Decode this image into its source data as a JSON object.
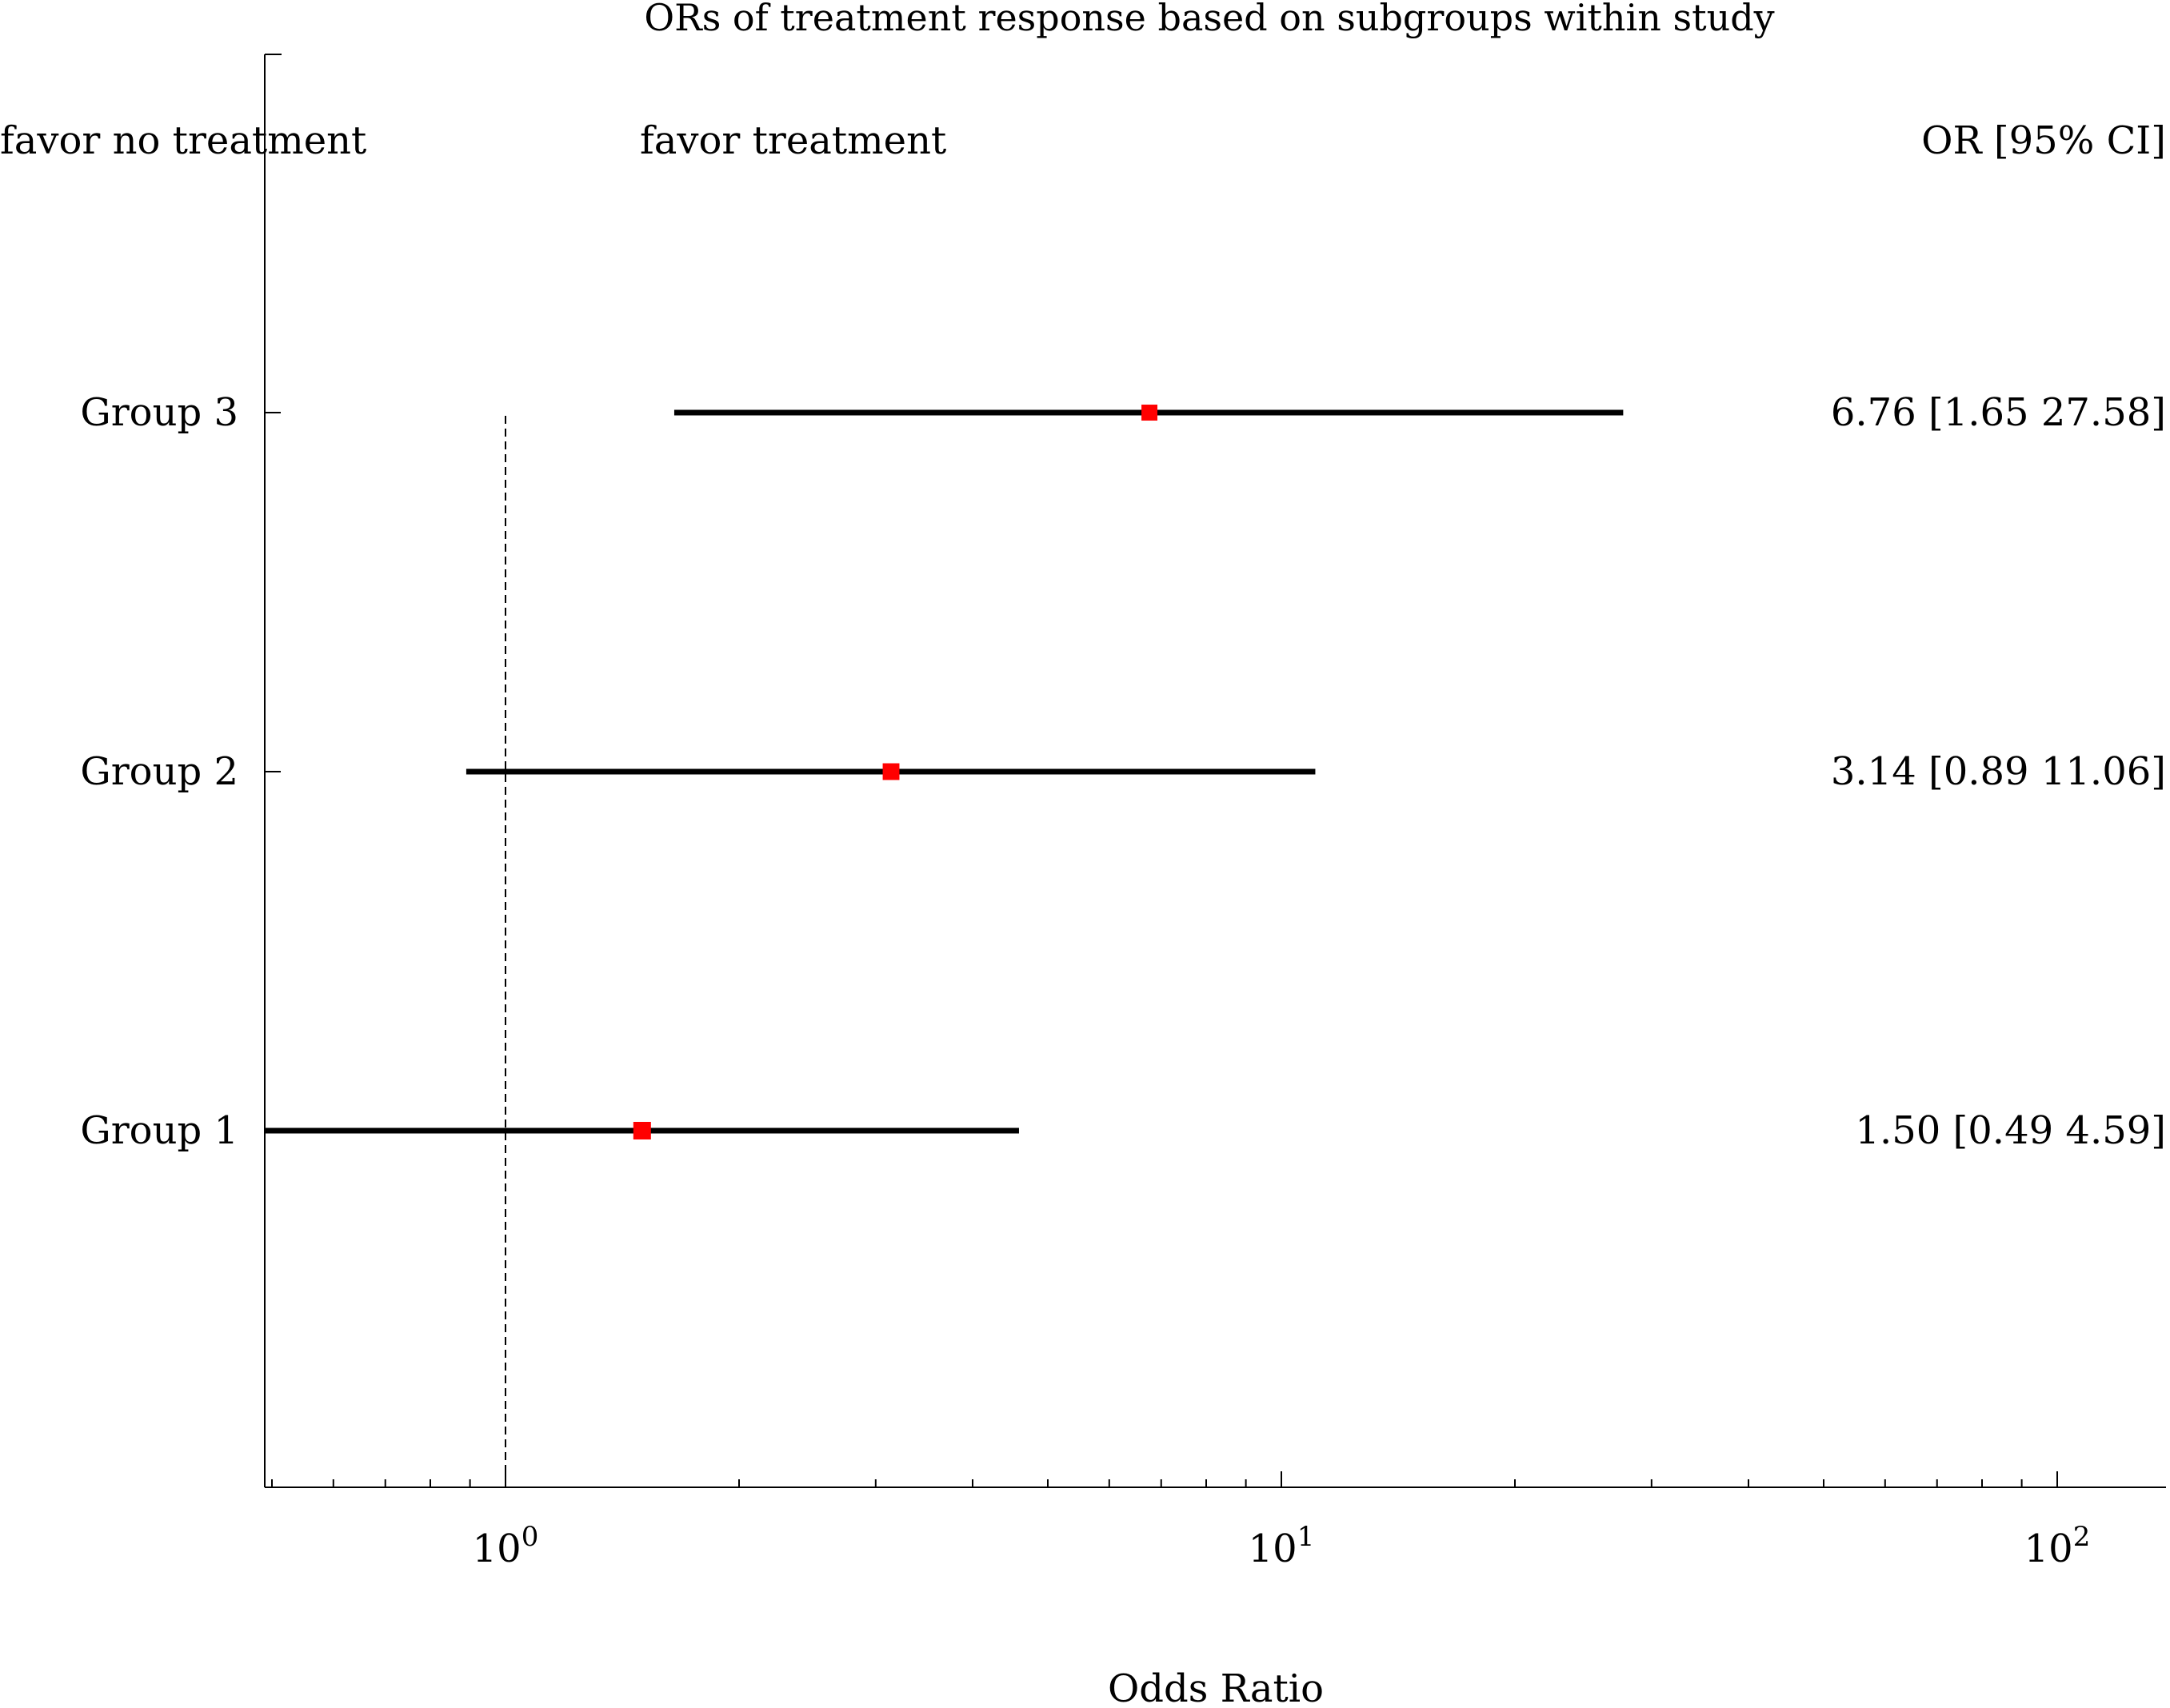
{
  "chart_data": {
    "type": "forest",
    "title": "ORs of treatment response based on subgroups within study",
    "xlabel": "Odds Ratio",
    "x_scale": "log",
    "xlim": [
      0.5,
      137
    ],
    "x_ticks": [
      {
        "value": 1,
        "label_base": "10",
        "label_exp": "0"
      },
      {
        "value": 10,
        "label_base": "10",
        "label_exp": "1"
      },
      {
        "value": 100,
        "label_base": "10",
        "label_exp": "2"
      }
    ],
    "reference_line": 1,
    "header_left": "favor no treatment",
    "header_middle": "favor treatment",
    "header_right": "OR [95% CI]",
    "marker_color": "#ff0000",
    "line_color": "#000000",
    "rows": [
      {
        "label": "Group 3",
        "or": 6.76,
        "ci_low": 1.65,
        "ci_high": 27.58,
        "text": "6.76 [1.65 27.58]"
      },
      {
        "label": "Group 2",
        "or": 3.14,
        "ci_low": 0.89,
        "ci_high": 11.06,
        "text": "3.14 [0.89 11.06]"
      },
      {
        "label": "Group 1",
        "or": 1.5,
        "ci_low": 0.49,
        "ci_high": 4.59,
        "text": "1.50 [0.49 4.59]"
      }
    ]
  }
}
